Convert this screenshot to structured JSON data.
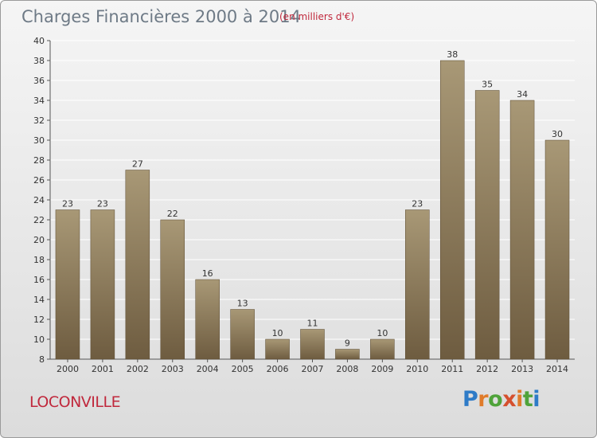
{
  "title": "Charges Financières 2000 à 2014",
  "unit_note": "(en milliers d'€)",
  "city": "LOCONVILLE",
  "brand": "Proxiti",
  "colors": {
    "bar_top": "#a89876",
    "bar_bottom": "#6e5c40",
    "title": "#6e7a86",
    "city": "#c0283c",
    "grid": "#ffffff"
  },
  "chart_data": {
    "type": "bar",
    "title": "Charges Financières 2000 à 2014",
    "xlabel": "",
    "ylabel": "",
    "categories": [
      "2000",
      "2001",
      "2002",
      "2003",
      "2004",
      "2005",
      "2006",
      "2007",
      "2008",
      "2009",
      "2010",
      "2011",
      "2012",
      "2013",
      "2014"
    ],
    "values": [
      23,
      23,
      27,
      22,
      16,
      13,
      10,
      11,
      9,
      10,
      23,
      38,
      35,
      34,
      30
    ],
    "ylim": [
      8,
      40
    ],
    "yticks": [
      8,
      10,
      12,
      14,
      16,
      18,
      20,
      22,
      24,
      26,
      28,
      30,
      32,
      34,
      36,
      38,
      40
    ],
    "grid": true,
    "legend": "none"
  }
}
